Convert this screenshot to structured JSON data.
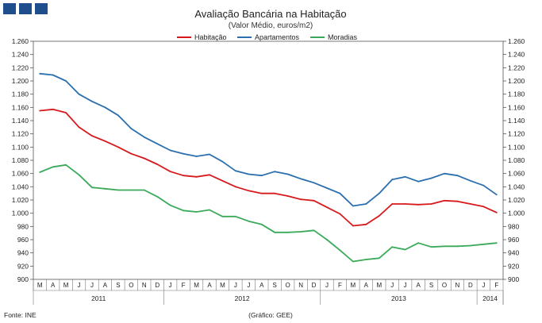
{
  "header": {
    "title": "Avaliação Bancária na Habitação",
    "subtitle": "(Valor Médio, euros/m2)"
  },
  "footer": {
    "source": "Fonte: INE",
    "credit": "(Gráfico: GEE)"
  },
  "chart_data": {
    "type": "line",
    "title": "Avaliação Bancária na Habitação",
    "subtitle": "(Valor Médio, euros/m2)",
    "x": [
      "M",
      "A",
      "M",
      "J",
      "J",
      "A",
      "S",
      "O",
      "N",
      "D",
      "J",
      "F",
      "M",
      "A",
      "M",
      "J",
      "J",
      "A",
      "S",
      "O",
      "N",
      "D",
      "J",
      "F",
      "M",
      "A",
      "M",
      "J",
      "J",
      "A",
      "S",
      "O",
      "N",
      "D",
      "J",
      "F"
    ],
    "years": [
      {
        "label": "2011",
        "months": 10
      },
      {
        "label": "2012",
        "months": 12
      },
      {
        "label": "2013",
        "months": 12
      },
      {
        "label": "2014",
        "months": 2
      }
    ],
    "ylim": [
      900,
      1260
    ],
    "yticks": [
      900,
      920,
      940,
      960,
      980,
      "1.000",
      "1.020",
      "1.040",
      "1.060",
      "1.080",
      "1.100",
      "1.120",
      "1.140",
      "1.160",
      "1.180",
      "1.200",
      "1.220",
      "1.240",
      "1.260"
    ],
    "legend_position": "top-center",
    "grid": false,
    "series": [
      {
        "name": "Habitação",
        "color": "#d7191c",
        "values": [
          1155,
          1157,
          1152,
          1130,
          1117,
          1109,
          1100,
          1090,
          1083,
          1074,
          1063,
          1057,
          1055,
          1058,
          1049,
          1040,
          1034,
          1030,
          1030,
          1026,
          1021,
          1019,
          1009,
          999,
          981,
          983,
          996,
          1014,
          1014,
          1013,
          1014,
          1019,
          1018,
          1014,
          1010,
          1001
        ]
      },
      {
        "name": "Apartamentos",
        "color": "#2b6fae",
        "values": [
          1211,
          1209,
          1200,
          1180,
          1169,
          1160,
          1148,
          1128,
          1115,
          1105,
          1095,
          1090,
          1086,
          1089,
          1078,
          1064,
          1059,
          1057,
          1063,
          1059,
          1052,
          1046,
          1038,
          1030,
          1011,
          1014,
          1030,
          1051,
          1055,
          1048,
          1053,
          1060,
          1057,
          1049,
          1042,
          1028
        ]
      },
      {
        "name": "Moradias",
        "color": "#3aaa5a",
        "values": [
          1062,
          1070,
          1073,
          1058,
          1039,
          1037,
          1035,
          1035,
          1035,
          1025,
          1012,
          1004,
          1002,
          1005,
          995,
          995,
          988,
          983,
          971,
          971,
          972,
          974,
          960,
          944,
          927,
          930,
          932,
          949,
          945,
          955,
          949,
          950,
          950,
          951,
          953,
          955
        ]
      }
    ]
  }
}
